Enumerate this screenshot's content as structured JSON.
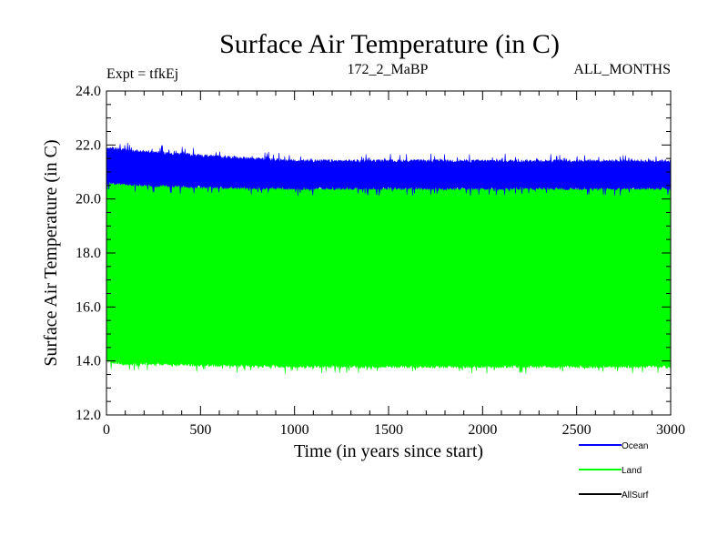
{
  "chart_data": {
    "type": "line",
    "title": "Surface Air Temperature (in C)",
    "subtitle_left": "Expt = tfkEj",
    "subtitle_center": "172_2_MaBP",
    "subtitle_right": "ALL_MONTHS",
    "xlabel": "Time (in years since start)",
    "ylabel": "Surface Air Temperature (in C)",
    "xlim": [
      0,
      3000
    ],
    "ylim": [
      12.0,
      24.0
    ],
    "x_ticks": [
      0,
      500,
      1000,
      1500,
      2000,
      2500,
      3000
    ],
    "x_tick_labels": [
      "0",
      "500",
      "1000",
      "1500",
      "2000",
      "2500",
      "3000"
    ],
    "y_ticks": [
      12.0,
      14.0,
      16.0,
      18.0,
      20.0,
      22.0,
      24.0
    ],
    "y_tick_labels": [
      "12.0",
      "14.0",
      "16.0",
      "18.0",
      "20.0",
      "22.0",
      "24.0"
    ],
    "grid": false,
    "legend_position": "bottom-right",
    "series": [
      {
        "name": "Ocean",
        "color": "#0000ff",
        "band": {
          "x": [
            0,
            100,
            300,
            500,
            1000,
            1500,
            2000,
            2500,
            3000
          ],
          "low": [
            20.6,
            20.55,
            20.5,
            20.45,
            20.4,
            20.4,
            20.4,
            20.4,
            20.4
          ],
          "high": [
            21.9,
            21.8,
            21.7,
            21.6,
            21.4,
            21.4,
            21.4,
            21.4,
            21.4
          ]
        }
      },
      {
        "name": "Land",
        "color": "#00ff00",
        "band": {
          "x": [
            0,
            100,
            300,
            500,
            1000,
            1500,
            2000,
            2500,
            3000
          ],
          "low": [
            14.0,
            13.9,
            13.9,
            13.85,
            13.8,
            13.8,
            13.8,
            13.8,
            13.8
          ],
          "high": [
            20.6,
            20.55,
            20.5,
            20.45,
            20.4,
            20.4,
            20.4,
            20.4,
            20.4
          ]
        }
      },
      {
        "name": "AllSurf",
        "color": "#000000"
      }
    ]
  }
}
